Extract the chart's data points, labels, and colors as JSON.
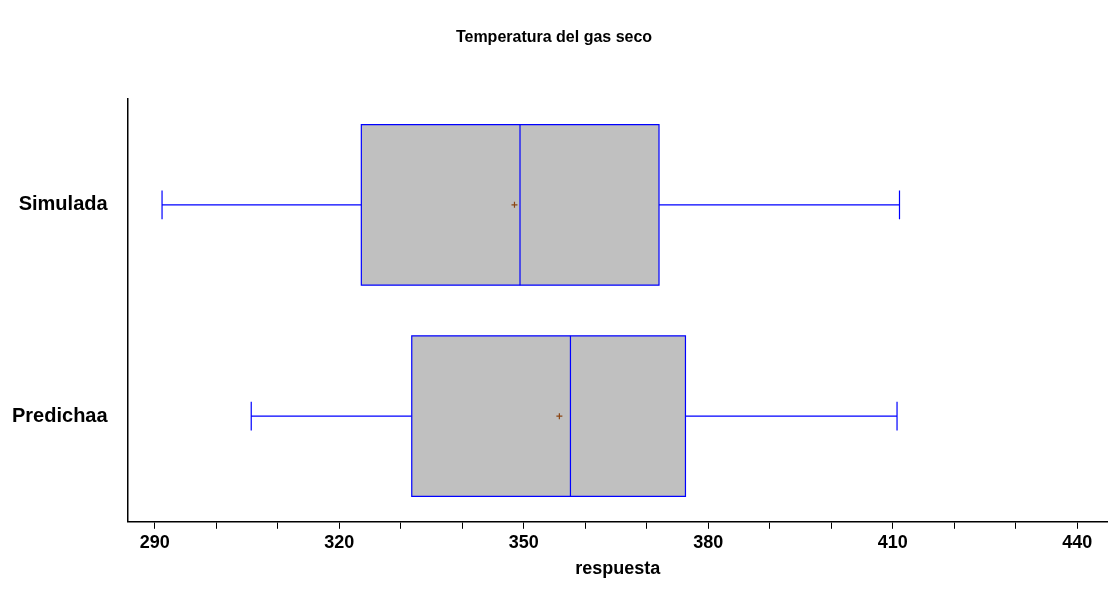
{
  "chart_data": {
    "type": "box",
    "title": "Temperatura del gas seco",
    "xlabel": "respuesta",
    "orientation": "horizontal",
    "categories": [
      "Simulada",
      "Predichaa"
    ],
    "boxes": [
      {
        "low": 291.2,
        "q1": 323.6,
        "median": 349.4,
        "q3": 372.0,
        "high": 411.1,
        "mean": 348.5
      },
      {
        "low": 305.7,
        "q1": 331.8,
        "median": 357.6,
        "q3": 376.3,
        "high": 410.7,
        "mean": 355.8
      }
    ],
    "color": "#c0c0c0",
    "xlim": [
      285.6,
      445
    ],
    "xticks": [
      290,
      {
        "value": 300,
        "label": null
      },
      {
        "value": 310,
        "label": null
      },
      320,
      {
        "value": 330,
        "label": null
      },
      {
        "value": 340,
        "label": null
      },
      350,
      {
        "value": 360,
        "label": null
      },
      {
        "value": 370,
        "label": null
      },
      380,
      {
        "value": 390,
        "label": null
      },
      {
        "value": 400,
        "label": null
      },
      410,
      {
        "value": 420,
        "label": null
      },
      {
        "value": 430,
        "label": null
      },
      440
    ],
    "grid": false,
    "legend": false
  }
}
